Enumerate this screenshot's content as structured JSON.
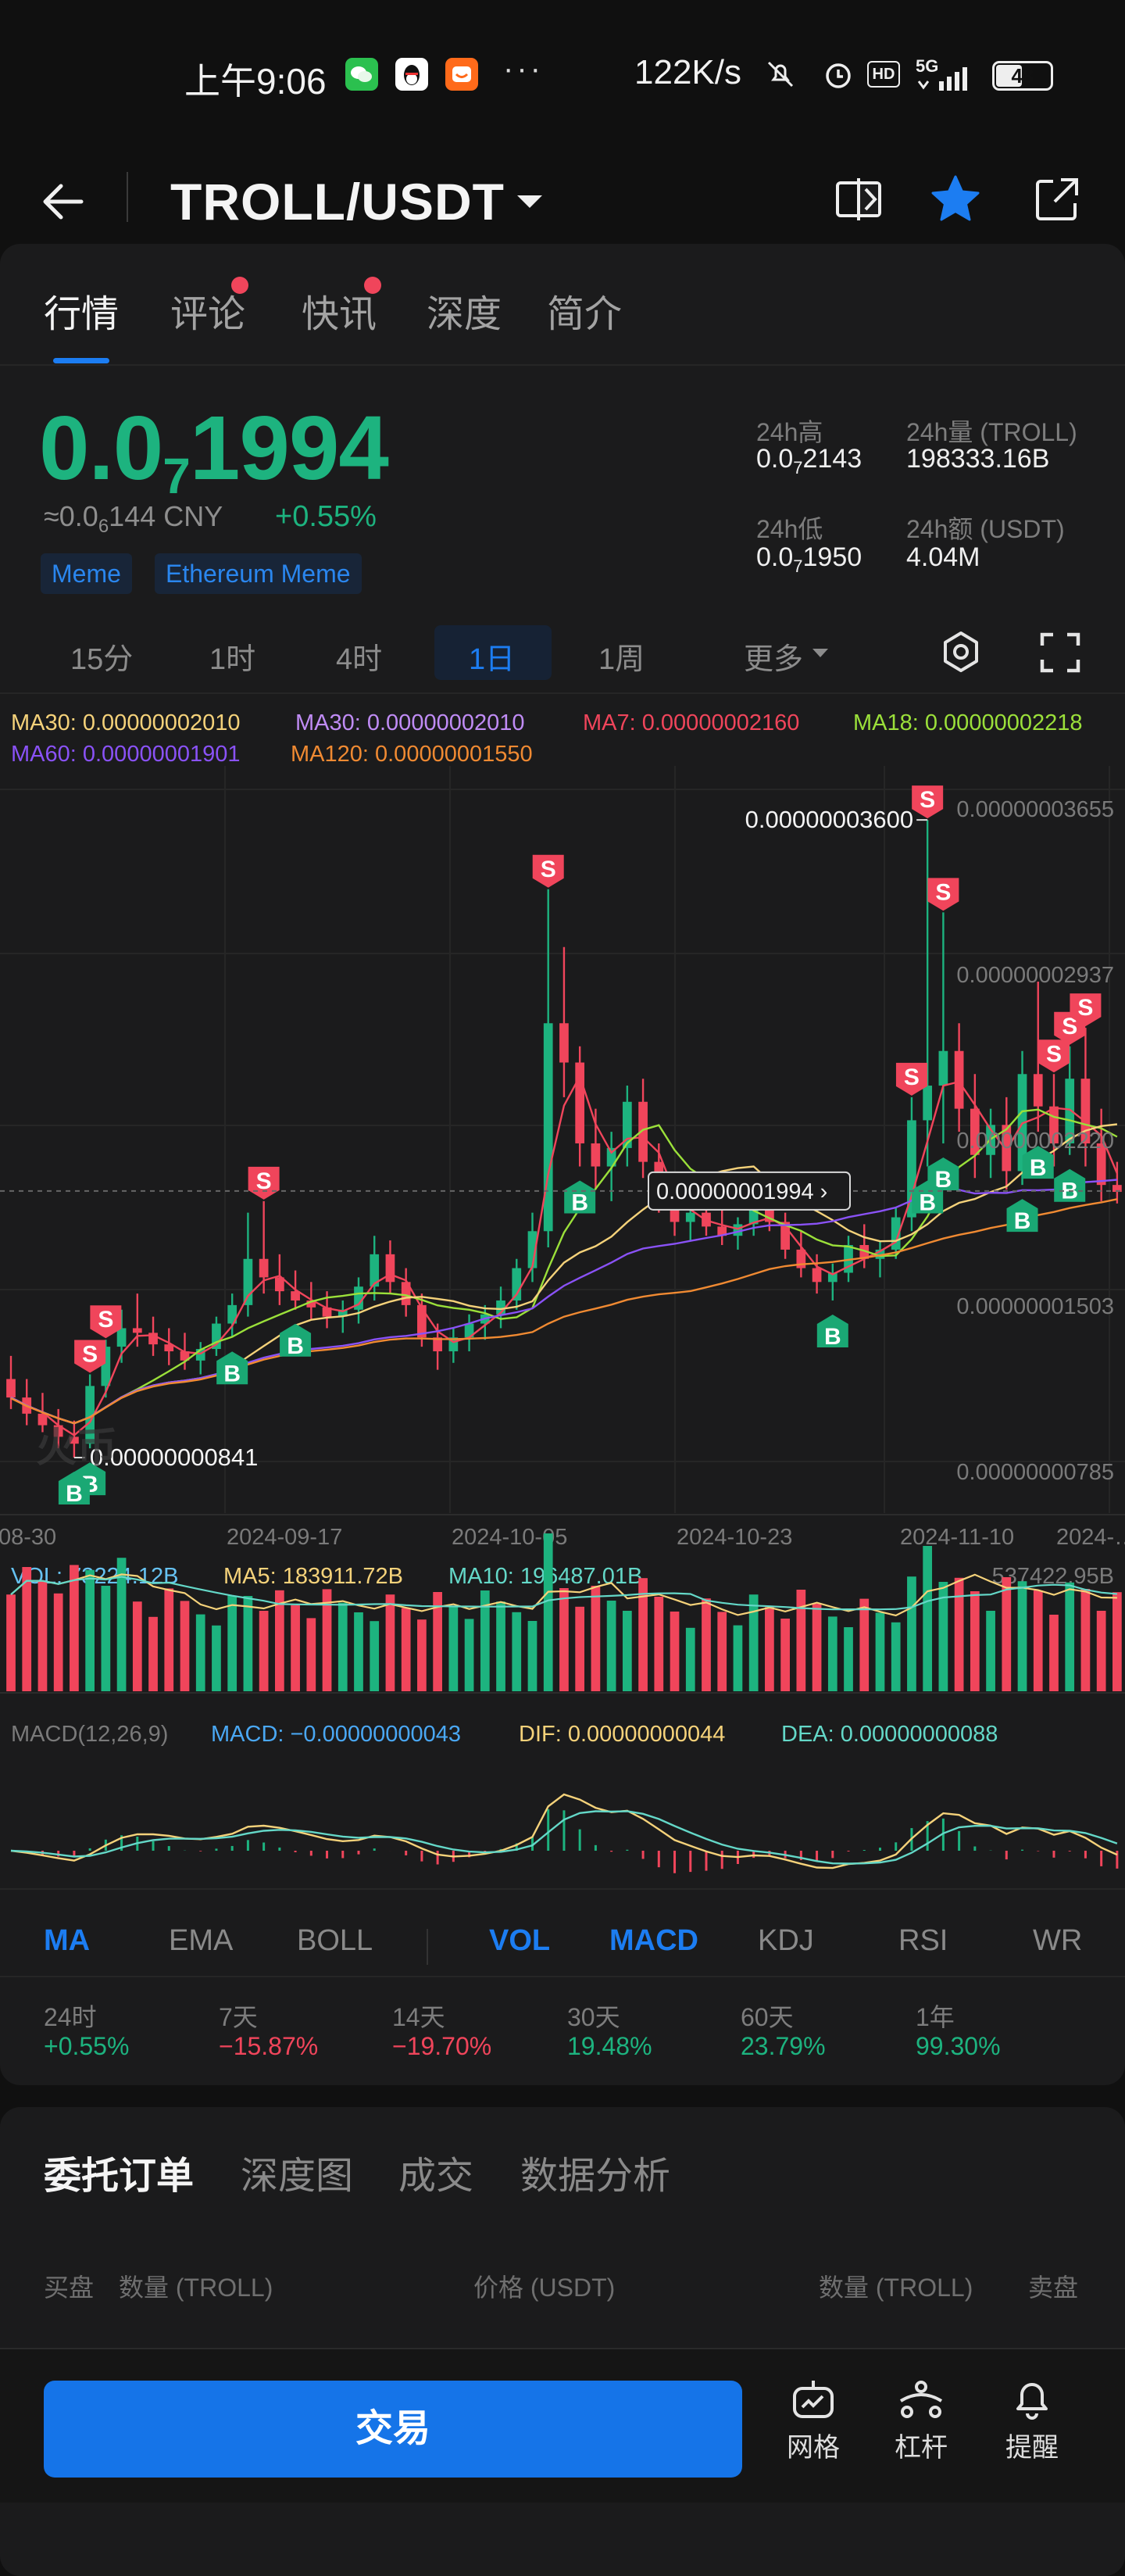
{
  "status_bar": {
    "time": "上午9:06",
    "net_speed": "122K/s",
    "signal_label": "5G",
    "hd_label": "HD",
    "battery": "48",
    "overflow": "···"
  },
  "header": {
    "title": "TROLL/USDT"
  },
  "tabs": [
    "行情",
    "评论",
    "快讯",
    "深度",
    "简介"
  ],
  "price": {
    "main_prefix": "0.0",
    "main_sub": "7",
    "main_suffix": "1994",
    "cny_prefix": "≈0.0",
    "cny_sub": "6",
    "cny_suffix": "144 CNY",
    "change": "+0.55%",
    "tags": [
      "Meme",
      "Ethereum Meme"
    ]
  },
  "stats": {
    "high_label": "24h高",
    "high_prefix": "0.0",
    "high_sub": "7",
    "high_suffix": "2143",
    "vol_label": "24h量 (TROLL)",
    "vol_value": "198333.16B",
    "low_label": "24h低",
    "low_prefix": "0.0",
    "low_sub": "7",
    "low_suffix": "1950",
    "amount_label": "24h额 (USDT)",
    "amount_value": "4.04M"
  },
  "intervals": [
    "15分",
    "1时",
    "4时",
    "1日",
    "1周",
    "更多"
  ],
  "chart_legend": {
    "ma30a": "MA30: 0.00000002010",
    "ma30b": "MA30: 0.00000002010",
    "ma7": "MA7: 0.00000002160",
    "ma18": "MA18: 0.00000002218",
    "ma60": "MA60: 0.00000001901",
    "ma120": "MA120: 0.00000001550"
  },
  "chart_labels": {
    "high_marker": "0.00000003600",
    "low_marker": "0.00000000841",
    "current_price": "0.00000001994",
    "watermark": "火币"
  },
  "vol_legend": {
    "vol": "VOL: 73224.12B",
    "ma5": "MA5: 183911.72B",
    "ma10": "MA10: 196487.01B",
    "max": "537422.95B"
  },
  "macd_legend": {
    "name": "MACD(12,26,9)",
    "macd": "MACD: −0.00000000043",
    "dif": "DIF: 0.00000000044",
    "dea": "DEA: 0.00000000088"
  },
  "indicators": [
    "MA",
    "EMA",
    "BOLL",
    "VOL",
    "MACD",
    "KDJ",
    "RSI",
    "WR"
  ],
  "performance": [
    {
      "label": "24时",
      "value": "+0.55%",
      "dir": "up"
    },
    {
      "label": "7天",
      "value": "−15.87%",
      "dir": "down"
    },
    {
      "label": "14天",
      "value": "−19.70%",
      "dir": "down"
    },
    {
      "label": "30天",
      "value": "19.48%",
      "dir": "up"
    },
    {
      "label": "60天",
      "value": "23.79%",
      "dir": "up"
    },
    {
      "label": "1年",
      "value": "99.30%",
      "dir": "up"
    }
  ],
  "order_tabs": [
    "委托订单",
    "深度图",
    "成交",
    "数据分析"
  ],
  "order_headers": {
    "buy": "买盘",
    "qty_left": "数量 (TROLL)",
    "price": "价格 (USDT)",
    "qty_right": "数量 (TROLL)",
    "sell": "卖盘"
  },
  "bottom_bar": {
    "trade": "交易",
    "grid": "网格",
    "leverage": "杠杆",
    "alert": "提醒"
  },
  "colors": {
    "up": "#1db37f",
    "down": "#f0455b",
    "accent": "#1c7df2"
  },
  "chart_data": {
    "type": "candlestick",
    "x_tick_labels": [
      "08-30",
      "2024-09-17",
      "2024-10-05",
      "2024-10-23",
      "2024-11-10",
      "2024-…"
    ],
    "y_tick_labels": [
      "0.00000003655",
      "0.00000002937",
      "0.00000002220",
      "0.00000001503",
      "0.00000000785"
    ],
    "ylim": [
      7.85e-09,
      3.655e-08
    ],
    "high": 3.6e-08,
    "low": 8.41e-09,
    "last": 1.994e-08,
    "candles": [
      {
        "o": 1.18,
        "h": 1.28,
        "l": 1.05,
        "c": 1.1
      },
      {
        "o": 1.1,
        "h": 1.18,
        "l": 0.98,
        "c": 1.03
      },
      {
        "o": 1.03,
        "h": 1.12,
        "l": 0.95,
        "c": 0.98
      },
      {
        "o": 0.98,
        "h": 1.05,
        "l": 0.88,
        "c": 0.93
      },
      {
        "o": 0.93,
        "h": 1.0,
        "l": 0.84,
        "c": 0.9
      },
      {
        "o": 0.9,
        "h": 1.2,
        "l": 0.88,
        "c": 1.15
      },
      {
        "o": 1.15,
        "h": 1.35,
        "l": 1.1,
        "c": 1.32
      },
      {
        "o": 1.32,
        "h": 1.48,
        "l": 1.25,
        "c": 1.4
      },
      {
        "o": 1.4,
        "h": 1.55,
        "l": 1.32,
        "c": 1.38
      },
      {
        "o": 1.38,
        "h": 1.45,
        "l": 1.28,
        "c": 1.33
      },
      {
        "o": 1.33,
        "h": 1.4,
        "l": 1.24,
        "c": 1.3
      },
      {
        "o": 1.3,
        "h": 1.38,
        "l": 1.22,
        "c": 1.26
      },
      {
        "o": 1.26,
        "h": 1.34,
        "l": 1.2,
        "c": 1.31
      },
      {
        "o": 1.31,
        "h": 1.45,
        "l": 1.28,
        "c": 1.42
      },
      {
        "o": 1.42,
        "h": 1.55,
        "l": 1.36,
        "c": 1.5
      },
      {
        "o": 1.5,
        "h": 1.9,
        "l": 1.45,
        "c": 1.7
      },
      {
        "o": 1.7,
        "h": 1.95,
        "l": 1.55,
        "c": 1.62
      },
      {
        "o": 1.62,
        "h": 1.72,
        "l": 1.5,
        "c": 1.56
      },
      {
        "o": 1.56,
        "h": 1.65,
        "l": 1.48,
        "c": 1.52
      },
      {
        "o": 1.52,
        "h": 1.6,
        "l": 1.44,
        "c": 1.49
      },
      {
        "o": 1.49,
        "h": 1.56,
        "l": 1.4,
        "c": 1.45
      },
      {
        "o": 1.45,
        "h": 1.52,
        "l": 1.38,
        "c": 1.48
      },
      {
        "o": 1.48,
        "h": 1.62,
        "l": 1.42,
        "c": 1.58
      },
      {
        "o": 1.58,
        "h": 1.8,
        "l": 1.52,
        "c": 1.72
      },
      {
        "o": 1.72,
        "h": 1.78,
        "l": 1.55,
        "c": 1.6
      },
      {
        "o": 1.6,
        "h": 1.66,
        "l": 1.45,
        "c": 1.5
      },
      {
        "o": 1.5,
        "h": 1.55,
        "l": 1.32,
        "c": 1.36
      },
      {
        "o": 1.36,
        "h": 1.42,
        "l": 1.22,
        "c": 1.3
      },
      {
        "o": 1.3,
        "h": 1.4,
        "l": 1.25,
        "c": 1.36
      },
      {
        "o": 1.36,
        "h": 1.46,
        "l": 1.3,
        "c": 1.42
      },
      {
        "o": 1.42,
        "h": 1.5,
        "l": 1.35,
        "c": 1.46
      },
      {
        "o": 1.46,
        "h": 1.58,
        "l": 1.4,
        "c": 1.52
      },
      {
        "o": 1.52,
        "h": 1.7,
        "l": 1.48,
        "c": 1.66
      },
      {
        "o": 1.66,
        "h": 1.9,
        "l": 1.6,
        "c": 1.82
      },
      {
        "o": 1.82,
        "h": 3.3,
        "l": 1.75,
        "c": 2.72
      },
      {
        "o": 2.72,
        "h": 3.05,
        "l": 2.4,
        "c": 2.55
      },
      {
        "o": 2.55,
        "h": 2.62,
        "l": 2.1,
        "c": 2.2
      },
      {
        "o": 2.2,
        "h": 2.35,
        "l": 2.0,
        "c": 2.1
      },
      {
        "o": 2.1,
        "h": 2.25,
        "l": 1.95,
        "c": 2.18
      },
      {
        "o": 2.18,
        "h": 2.45,
        "l": 2.1,
        "c": 2.38
      },
      {
        "o": 2.38,
        "h": 2.48,
        "l": 2.05,
        "c": 2.12
      },
      {
        "o": 2.12,
        "h": 2.2,
        "l": 1.9,
        "c": 1.98
      },
      {
        "o": 1.98,
        "h": 2.05,
        "l": 1.8,
        "c": 1.86
      },
      {
        "o": 1.86,
        "h": 1.95,
        "l": 1.78,
        "c": 1.9
      },
      {
        "o": 1.9,
        "h": 1.98,
        "l": 1.8,
        "c": 1.84
      },
      {
        "o": 1.84,
        "h": 1.92,
        "l": 1.76,
        "c": 1.8
      },
      {
        "o": 1.8,
        "h": 1.88,
        "l": 1.74,
        "c": 1.85
      },
      {
        "o": 1.85,
        "h": 1.98,
        "l": 1.8,
        "c": 1.92
      },
      {
        "o": 1.92,
        "h": 2.0,
        "l": 1.82,
        "c": 1.86
      },
      {
        "o": 1.86,
        "h": 1.9,
        "l": 1.7,
        "c": 1.74
      },
      {
        "o": 1.74,
        "h": 1.82,
        "l": 1.62,
        "c": 1.66
      },
      {
        "o": 1.66,
        "h": 1.72,
        "l": 1.55,
        "c": 1.6
      },
      {
        "o": 1.6,
        "h": 1.68,
        "l": 1.52,
        "c": 1.64
      },
      {
        "o": 1.64,
        "h": 1.8,
        "l": 1.6,
        "c": 1.76
      },
      {
        "o": 1.76,
        "h": 1.85,
        "l": 1.66,
        "c": 1.7
      },
      {
        "o": 1.7,
        "h": 1.78,
        "l": 1.62,
        "c": 1.74
      },
      {
        "o": 1.74,
        "h": 1.92,
        "l": 1.7,
        "c": 1.88
      },
      {
        "o": 1.88,
        "h": 2.4,
        "l": 1.82,
        "c": 2.3
      },
      {
        "o": 2.3,
        "h": 3.6,
        "l": 2.1,
        "c": 2.45
      },
      {
        "o": 2.45,
        "h": 3.2,
        "l": 2.2,
        "c": 2.6
      },
      {
        "o": 2.6,
        "h": 2.72,
        "l": 2.25,
        "c": 2.35
      },
      {
        "o": 2.35,
        "h": 2.5,
        "l": 2.05,
        "c": 2.15
      },
      {
        "o": 2.15,
        "h": 2.35,
        "l": 2.05,
        "c": 2.28
      },
      {
        "o": 2.28,
        "h": 2.4,
        "l": 2.0,
        "c": 2.08
      },
      {
        "o": 2.08,
        "h": 2.6,
        "l": 2.02,
        "c": 2.5
      },
      {
        "o": 2.5,
        "h": 2.9,
        "l": 2.25,
        "c": 2.36
      },
      {
        "o": 2.36,
        "h": 2.5,
        "l": 2.1,
        "c": 2.2
      },
      {
        "o": 2.2,
        "h": 2.62,
        "l": 2.15,
        "c": 2.48
      },
      {
        "o": 2.48,
        "h": 2.7,
        "l": 2.1,
        "c": 2.2
      },
      {
        "o": 2.2,
        "h": 2.35,
        "l": 1.95,
        "c": 2.02
      },
      {
        "o": 2.02,
        "h": 2.12,
        "l": 1.94,
        "c": 1.99
      }
    ],
    "y_unit_scale": "values ×0.00000001",
    "trade_markers": [
      {
        "type": "S",
        "index": 6
      },
      {
        "type": "S",
        "index": 5
      },
      {
        "type": "B",
        "index": 5
      },
      {
        "type": "B",
        "index": 4
      },
      {
        "type": "S",
        "index": 16
      },
      {
        "type": "B",
        "index": 14
      },
      {
        "type": "B",
        "index": 18
      },
      {
        "type": "S",
        "index": 34
      },
      {
        "type": "B",
        "index": 36
      },
      {
        "type": "B",
        "index": 52
      },
      {
        "type": "S",
        "index": 57
      },
      {
        "type": "S",
        "index": 58
      },
      {
        "type": "B",
        "index": 59
      },
      {
        "type": "B",
        "index": 58
      },
      {
        "type": "S",
        "index": 59
      },
      {
        "type": "S",
        "index": 67
      },
      {
        "type": "S",
        "index": 66
      },
      {
        "type": "S",
        "index": 68
      },
      {
        "type": "B",
        "index": 64
      },
      {
        "type": "B",
        "index": 65
      },
      {
        "type": "B",
        "index": 67
      }
    ]
  }
}
